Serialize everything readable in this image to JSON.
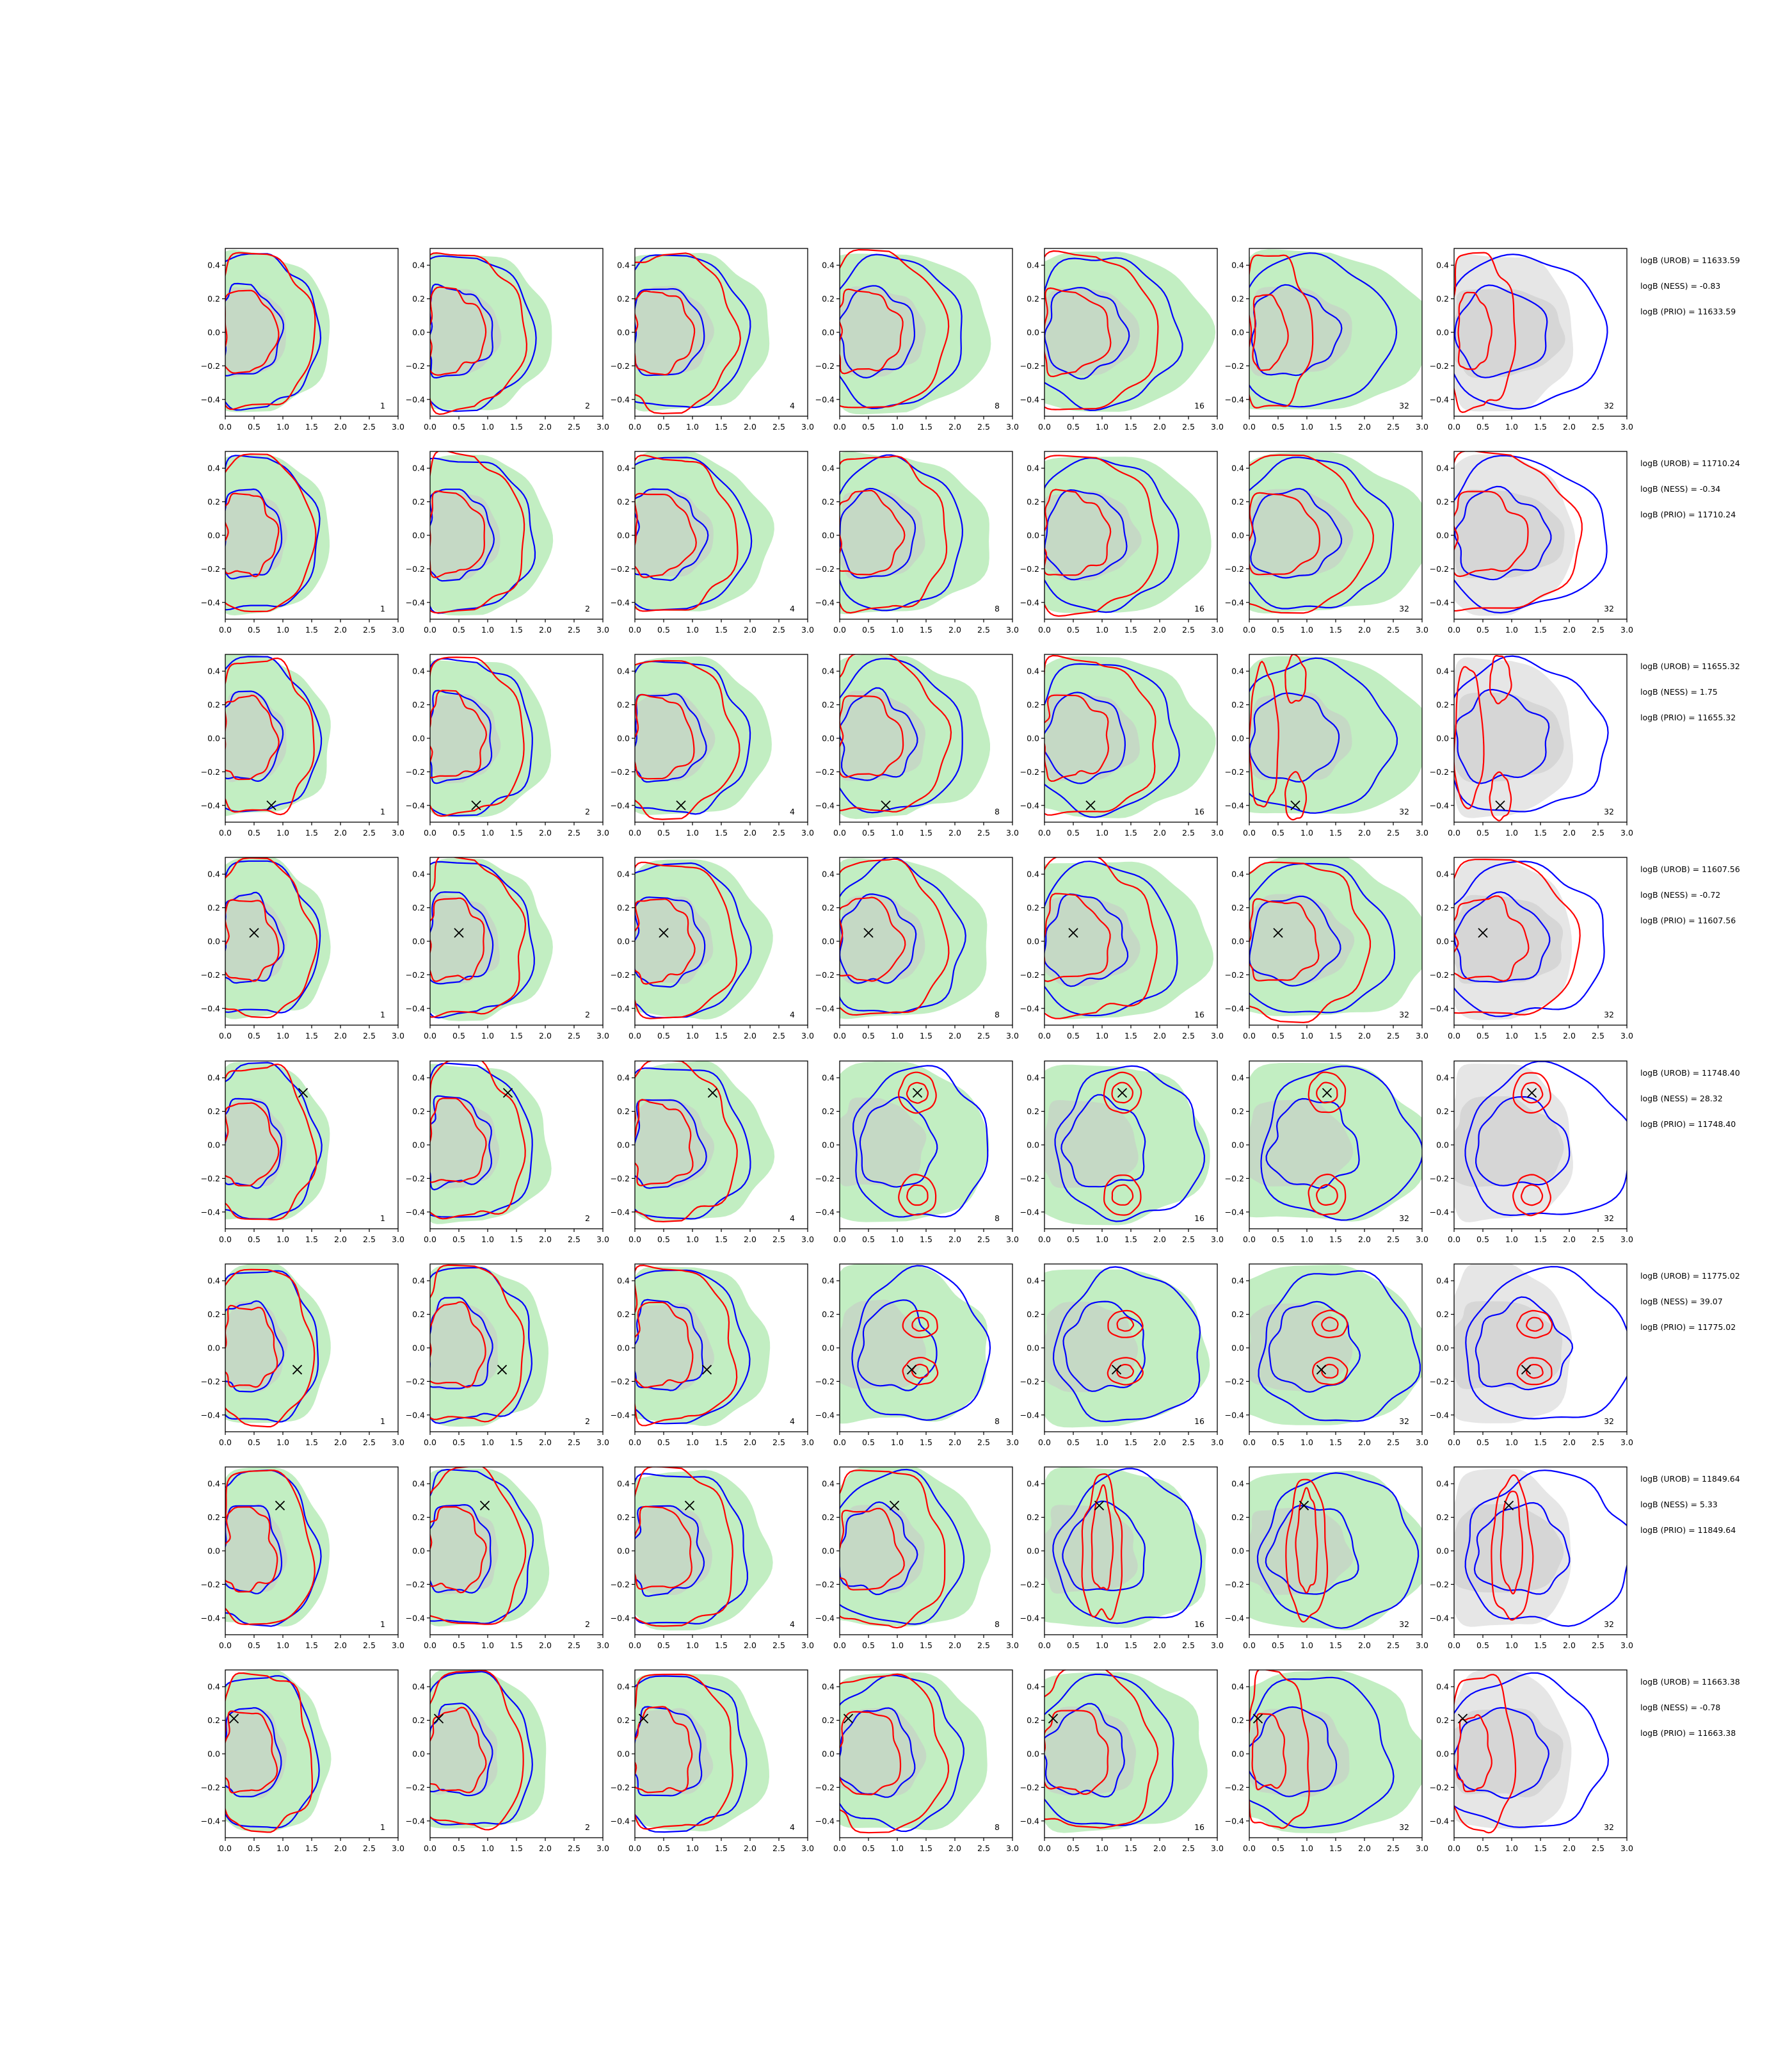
{
  "chart_data": {
    "type": "contour",
    "grid": {
      "rows": 8,
      "cols": 7
    },
    "xlim": [
      0.0,
      3.0
    ],
    "ylim": [
      -0.5,
      0.5
    ],
    "xticks": [
      "0.0",
      "0.5",
      "1.0",
      "1.5",
      "2.0",
      "2.5",
      "3.0"
    ],
    "yticks": [
      "0.4",
      "0.2",
      "0.0",
      "−0.2",
      "−0.4"
    ],
    "ytick_values": [
      0.4,
      0.2,
      0.0,
      -0.2,
      -0.4
    ],
    "xtick_values": [
      0.0,
      0.5,
      1.0,
      1.5,
      2.0,
      2.5,
      3.0
    ],
    "panel_labels": [
      "1",
      "2",
      "4",
      "8",
      "16",
      "32",
      "32"
    ],
    "colors": {
      "green_fill": "#90e090",
      "gray_fill": "#c8c8c8",
      "blue": "#0000ff",
      "red": "#ff0000",
      "marker": "#000000",
      "axes": "#000000"
    },
    "rows": [
      {
        "stats": [
          "logB (UROB) = 11633.59",
          "logB (NESS) = -0.83",
          "logB (PRIO) = 11633.59"
        ],
        "marker": null,
        "red_mode": [
          0,
          0,
          0,
          0,
          0,
          1,
          1
        ]
      },
      {
        "stats": [
          "logB (UROB) = 11710.24",
          "logB (NESS) = -0.34",
          "logB (PRIO) = 11710.24"
        ],
        "marker": null,
        "red_mode": [
          0,
          0,
          0,
          0,
          0,
          0,
          0
        ]
      },
      {
        "stats": [
          "logB (UROB) = 11655.32",
          "logB (NESS) = 1.75",
          "logB (PRIO) = 11655.32"
        ],
        "marker": [
          0.8,
          -0.4
        ],
        "red_mode": [
          0,
          0,
          0,
          0,
          0,
          2,
          2
        ]
      },
      {
        "stats": [
          "logB (UROB) = 11607.56",
          "logB (NESS) = -0.72",
          "logB (PRIO) = 11607.56"
        ],
        "marker": [
          0.5,
          0.05
        ],
        "red_mode": [
          0,
          0,
          0,
          0,
          0,
          0,
          0
        ]
      },
      {
        "stats": [
          "logB (UROB) = 11748.40",
          "logB (NESS) = 28.32",
          "logB (PRIO) = 11748.40"
        ],
        "marker": [
          1.35,
          0.31
        ],
        "red_mode": [
          0,
          0,
          0,
          3,
          3,
          3,
          3
        ]
      },
      {
        "stats": [
          "logB (UROB) = 11775.02",
          "logB (NESS) = 39.07",
          "logB (PRIO) = 11775.02"
        ],
        "marker": [
          1.25,
          -0.13
        ],
        "red_mode": [
          0,
          0,
          0,
          4,
          4,
          4,
          4
        ]
      },
      {
        "stats": [
          "logB (UROB) = 11849.64",
          "logB (NESS) = 5.33",
          "logB (PRIO) = 11849.64"
        ],
        "marker": [
          0.95,
          0.27
        ],
        "red_mode": [
          0,
          0,
          0,
          0,
          5,
          5,
          5
        ]
      },
      {
        "stats": [
          "logB (UROB) = 11663.38",
          "logB (NESS) = -0.78",
          "logB (PRIO) = 11663.38"
        ],
        "marker": [
          0.15,
          0.21
        ],
        "red_mode": [
          0,
          0,
          0,
          0,
          0,
          1,
          1
        ]
      }
    ]
  }
}
